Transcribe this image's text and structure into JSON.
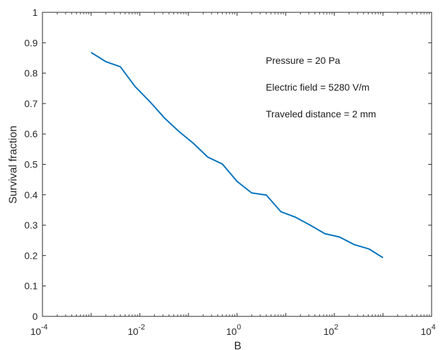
{
  "chart_data": {
    "type": "line",
    "title": "",
    "xlabel": "B",
    "ylabel": "Survival fraction",
    "xscale": "log",
    "xlim": [
      0.0001,
      10000
    ],
    "ylim": [
      0,
      1
    ],
    "grid": false,
    "legend": "none",
    "x_ticks": [
      {
        "value": 0.0001,
        "base": "10",
        "exp": "-4"
      },
      {
        "value": 0.01,
        "base": "10",
        "exp": "-2"
      },
      {
        "value": 1,
        "base": "10",
        "exp": "0"
      },
      {
        "value": 100,
        "base": "10",
        "exp": "2"
      },
      {
        "value": 10000,
        "base": "10",
        "exp": "4"
      }
    ],
    "y_ticks": [
      "0",
      "0.1",
      "0.2",
      "0.3",
      "0.4",
      "0.5",
      "0.6",
      "0.7",
      "0.8",
      "0.9",
      "1"
    ],
    "series": [
      {
        "color": "#0072BD",
        "x": [
          0.001,
          0.002,
          0.004,
          0.008,
          0.016,
          0.032,
          0.064,
          0.125,
          0.25,
          0.5,
          1,
          2,
          4,
          8,
          16,
          32,
          64,
          128,
          256,
          512,
          1000
        ],
        "y": [
          0.868,
          0.838,
          0.821,
          0.756,
          0.707,
          0.653,
          0.608,
          0.57,
          0.524,
          0.501,
          0.444,
          0.406,
          0.399,
          0.344,
          0.326,
          0.3,
          0.272,
          0.261,
          0.236,
          0.222,
          0.193
        ]
      }
    ],
    "annotations": [
      "Pressure = 20 Pa",
      "Electric field = 5280 V/m",
      "Traveled distance = 2 mm"
    ]
  }
}
